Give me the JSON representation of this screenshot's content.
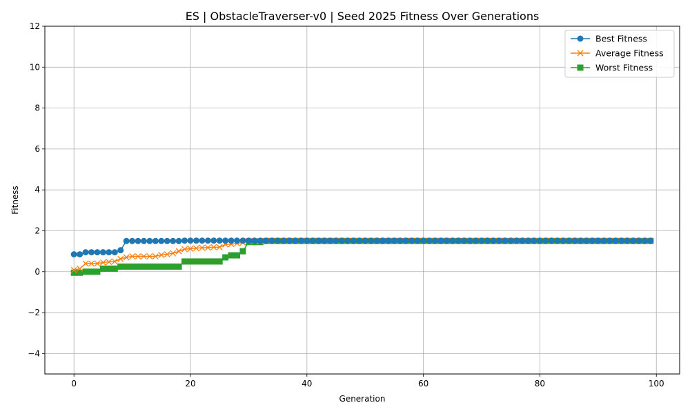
{
  "chart_data": {
    "type": "line",
    "title": "ES | ObstacleTraverser-v0 | Seed 2025 Fitness Over Generations",
    "xlabel": "Generation",
    "ylabel": "Fitness",
    "xlim": [
      -5,
      104
    ],
    "ylim": [
      -5,
      12
    ],
    "xticks": [
      0,
      20,
      40,
      60,
      80,
      100
    ],
    "yticks": [
      -4,
      -2,
      0,
      2,
      4,
      6,
      8,
      10,
      12
    ],
    "xtick_labels": [
      "0",
      "20",
      "40",
      "60",
      "80",
      "100"
    ],
    "ytick_labels": [
      "−4",
      "−2",
      "0",
      "2",
      "4",
      "6",
      "8",
      "10",
      "12"
    ],
    "grid": true,
    "legend_position": "top-right",
    "x": [
      0,
      1,
      2,
      3,
      4,
      5,
      6,
      7,
      8,
      9,
      10,
      11,
      12,
      13,
      14,
      15,
      16,
      17,
      18,
      19,
      20,
      21,
      22,
      23,
      24,
      25,
      26,
      27,
      28,
      29,
      30,
      31,
      32,
      33,
      34,
      35,
      36,
      37,
      38,
      39,
      40,
      41,
      42,
      43,
      44,
      45,
      46,
      47,
      48,
      49,
      50,
      51,
      52,
      53,
      54,
      55,
      56,
      57,
      58,
      59,
      60,
      61,
      62,
      63,
      64,
      65,
      66,
      67,
      68,
      69,
      70,
      71,
      72,
      73,
      74,
      75,
      76,
      77,
      78,
      79,
      80,
      81,
      82,
      83,
      84,
      85,
      86,
      87,
      88,
      89,
      90,
      91,
      92,
      93,
      94,
      95,
      96,
      97,
      98,
      99
    ],
    "series": [
      {
        "name": "Best Fitness",
        "color": "#1f77b4",
        "marker": "circle",
        "values": [
          0.85,
          0.85,
          0.95,
          0.95,
          0.95,
          0.95,
          0.95,
          0.95,
          1.05,
          1.5,
          1.5,
          1.5,
          1.5,
          1.5,
          1.5,
          1.5,
          1.5,
          1.5,
          1.5,
          1.52,
          1.52,
          1.52,
          1.52,
          1.52,
          1.52,
          1.52,
          1.52,
          1.52,
          1.52,
          1.52,
          1.52,
          1.52,
          1.52,
          1.52,
          1.52,
          1.52,
          1.52,
          1.52,
          1.52,
          1.52,
          1.52,
          1.52,
          1.52,
          1.52,
          1.52,
          1.52,
          1.52,
          1.52,
          1.52,
          1.52,
          1.52,
          1.52,
          1.52,
          1.52,
          1.52,
          1.52,
          1.52,
          1.52,
          1.52,
          1.52,
          1.52,
          1.52,
          1.52,
          1.52,
          1.52,
          1.52,
          1.52,
          1.52,
          1.52,
          1.52,
          1.52,
          1.52,
          1.52,
          1.52,
          1.52,
          1.52,
          1.52,
          1.52,
          1.52,
          1.52,
          1.52,
          1.52,
          1.52,
          1.52,
          1.52,
          1.52,
          1.52,
          1.52,
          1.52,
          1.52,
          1.52,
          1.52,
          1.52,
          1.52,
          1.52,
          1.52,
          1.52,
          1.52,
          1.52,
          1.52
        ]
      },
      {
        "name": "Average Fitness",
        "color": "#ff7f0e",
        "marker": "x",
        "values": [
          0.08,
          0.15,
          0.4,
          0.4,
          0.4,
          0.45,
          0.48,
          0.5,
          0.62,
          0.7,
          0.75,
          0.75,
          0.75,
          0.75,
          0.75,
          0.82,
          0.85,
          0.9,
          1.0,
          1.1,
          1.12,
          1.15,
          1.17,
          1.18,
          1.2,
          1.2,
          1.33,
          1.35,
          1.38,
          1.42,
          1.5,
          1.5,
          1.5,
          1.5,
          1.5,
          1.5,
          1.5,
          1.5,
          1.5,
          1.5,
          1.5,
          1.5,
          1.5,
          1.5,
          1.5,
          1.5,
          1.5,
          1.5,
          1.5,
          1.5,
          1.5,
          1.5,
          1.5,
          1.5,
          1.5,
          1.5,
          1.5,
          1.5,
          1.5,
          1.5,
          1.5,
          1.5,
          1.5,
          1.5,
          1.5,
          1.5,
          1.5,
          1.5,
          1.5,
          1.5,
          1.5,
          1.5,
          1.5,
          1.5,
          1.5,
          1.5,
          1.5,
          1.5,
          1.5,
          1.5,
          1.5,
          1.5,
          1.5,
          1.5,
          1.5,
          1.5,
          1.5,
          1.5,
          1.5,
          1.5,
          1.5,
          1.5,
          1.5,
          1.5,
          1.5,
          1.5,
          1.5,
          1.5,
          1.5,
          1.5
        ]
      },
      {
        "name": "Worst Fitness",
        "color": "#2ca02c",
        "marker": "square",
        "values": [
          -0.05,
          -0.05,
          0.0,
          0.0,
          0.0,
          0.15,
          0.15,
          0.15,
          0.25,
          0.25,
          0.25,
          0.25,
          0.25,
          0.25,
          0.25,
          0.25,
          0.25,
          0.25,
          0.25,
          0.5,
          0.5,
          0.5,
          0.5,
          0.5,
          0.5,
          0.5,
          0.7,
          0.8,
          0.8,
          1.0,
          1.45,
          1.45,
          1.45,
          1.5,
          1.5,
          1.5,
          1.5,
          1.5,
          1.5,
          1.5,
          1.5,
          1.5,
          1.5,
          1.5,
          1.5,
          1.5,
          1.5,
          1.5,
          1.5,
          1.5,
          1.5,
          1.5,
          1.5,
          1.5,
          1.5,
          1.5,
          1.5,
          1.5,
          1.5,
          1.5,
          1.5,
          1.5,
          1.5,
          1.5,
          1.5,
          1.5,
          1.5,
          1.5,
          1.5,
          1.5,
          1.5,
          1.5,
          1.5,
          1.5,
          1.5,
          1.5,
          1.5,
          1.5,
          1.5,
          1.5,
          1.5,
          1.5,
          1.5,
          1.5,
          1.5,
          1.5,
          1.5,
          1.5,
          1.5,
          1.5,
          1.5,
          1.5,
          1.5,
          1.5,
          1.5,
          1.5,
          1.5,
          1.5,
          1.5,
          1.5
        ]
      }
    ]
  }
}
